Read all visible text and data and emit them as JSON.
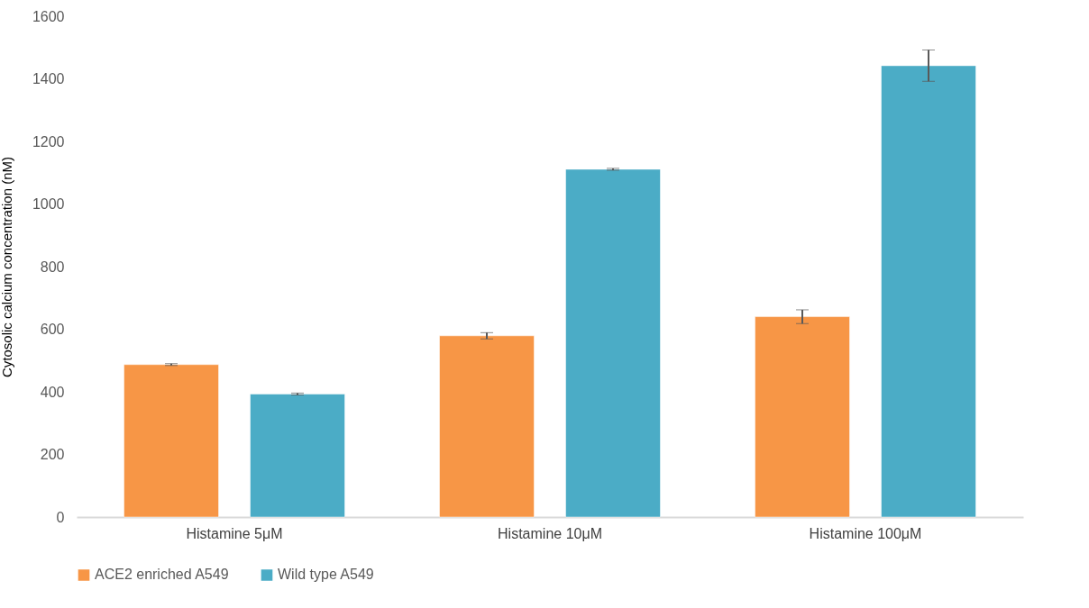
{
  "chart_data": {
    "type": "bar",
    "ylabel": "Cytosolic calcium concentration (nM)",
    "categories": [
      "Histamine 5μM",
      "Histamine 10μM",
      "Histamine 100μM"
    ],
    "series": [
      {
        "name": "ACE2 enriched A549",
        "color": "#f79646",
        "values": [
          487,
          579,
          640
        ],
        "errors": [
          3,
          10,
          22
        ]
      },
      {
        "name": "Wild type A549",
        "color": "#4bacc6",
        "values": [
          393,
          1111,
          1442
        ],
        "errors": [
          3,
          3,
          50
        ]
      }
    ],
    "ylim": [
      0,
      1600
    ],
    "yticks": [
      0,
      200,
      400,
      600,
      800,
      1000,
      1200,
      1400,
      1600
    ],
    "grid": false,
    "legend": "bottom"
  }
}
